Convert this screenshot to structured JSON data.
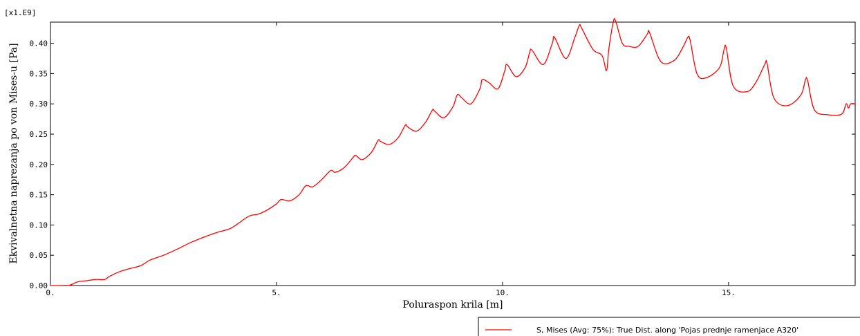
{
  "chart_data": {
    "type": "line",
    "title": "",
    "xlabel": "Poluraspon krila [m]",
    "ylabel": "Ekvivalnetna naprezanja po von Mises-u [Pa]",
    "y_scale_label": "[x1.E9]",
    "xlim": [
      0,
      17.8
    ],
    "ylim": [
      0,
      0.435
    ],
    "x_ticks": [
      0,
      5,
      10,
      15
    ],
    "x_tick_labels": [
      "0.",
      "5.",
      "10.",
      "15."
    ],
    "y_ticks": [
      0,
      0.05,
      0.1,
      0.15,
      0.2,
      0.25,
      0.3,
      0.35,
      0.4
    ],
    "y_tick_labels": [
      "0.00",
      "0.05",
      "0.10",
      "0.15",
      "0.20",
      "0.25",
      "0.30",
      "0.35",
      "0.40"
    ],
    "grid": false,
    "legend_position": "bottom-right",
    "series": [
      {
        "name": "S, Mises (Avg: 75%): True Dist. along 'Pojas prednje ramenjace A320'",
        "color": "#ff0000",
        "x": [
          0,
          0.2,
          0.4,
          0.6,
          0.8,
          1.0,
          1.2,
          1.3,
          1.5,
          1.7,
          2.0,
          2.2,
          2.5,
          2.8,
          3.1,
          3.4,
          3.7,
          3.85,
          4.0,
          4.2,
          4.4,
          4.6,
          4.8,
          5.0,
          5.1,
          5.3,
          5.5,
          5.65,
          5.8,
          6.0,
          6.2,
          6.3,
          6.5,
          6.7,
          6.75,
          6.9,
          7.1,
          7.25,
          7.3,
          7.5,
          7.7,
          7.85,
          7.9,
          8.1,
          8.3,
          8.45,
          8.5,
          8.7,
          8.9,
          9.0,
          9.1,
          9.3,
          9.5,
          9.55,
          9.7,
          9.9,
          10.05,
          10.1,
          10.3,
          10.5,
          10.6,
          10.65,
          10.9,
          11.1,
          11.15,
          11.4,
          11.6,
          11.7,
          11.75,
          12.0,
          12.2,
          12.3,
          12.35,
          12.45,
          12.5,
          12.65,
          12.8,
          13.0,
          13.2,
          13.25,
          13.5,
          13.8,
          14.0,
          14.1,
          14.15,
          14.3,
          14.5,
          14.8,
          14.9,
          14.95,
          15.1,
          15.4,
          15.6,
          15.8,
          15.85,
          16.0,
          16.3,
          16.6,
          16.7,
          16.75,
          16.9,
          17.2,
          17.5,
          17.6,
          17.65,
          17.7,
          17.8
        ],
        "y": [
          0,
          0,
          0,
          0.006,
          0.008,
          0.01,
          0.01,
          0.015,
          0.022,
          0.027,
          0.033,
          0.042,
          0.05,
          0.06,
          0.071,
          0.08,
          0.088,
          0.091,
          0.095,
          0.105,
          0.115,
          0.118,
          0.125,
          0.135,
          0.142,
          0.14,
          0.15,
          0.165,
          0.163,
          0.175,
          0.19,
          0.187,
          0.195,
          0.212,
          0.215,
          0.208,
          0.22,
          0.24,
          0.238,
          0.233,
          0.245,
          0.265,
          0.262,
          0.255,
          0.27,
          0.29,
          0.288,
          0.277,
          0.295,
          0.315,
          0.31,
          0.3,
          0.325,
          0.34,
          0.335,
          0.325,
          0.355,
          0.365,
          0.345,
          0.36,
          0.385,
          0.389,
          0.365,
          0.4,
          0.41,
          0.375,
          0.41,
          0.43,
          0.425,
          0.39,
          0.38,
          0.355,
          0.39,
          0.435,
          0.437,
          0.4,
          0.395,
          0.395,
          0.415,
          0.418,
          0.37,
          0.372,
          0.395,
          0.41,
          0.405,
          0.35,
          0.343,
          0.36,
          0.39,
          0.392,
          0.33,
          0.32,
          0.335,
          0.365,
          0.367,
          0.31,
          0.297,
          0.315,
          0.34,
          0.338,
          0.29,
          0.282,
          0.283,
          0.3,
          0.293,
          0.3,
          0.3
        ]
      }
    ]
  }
}
